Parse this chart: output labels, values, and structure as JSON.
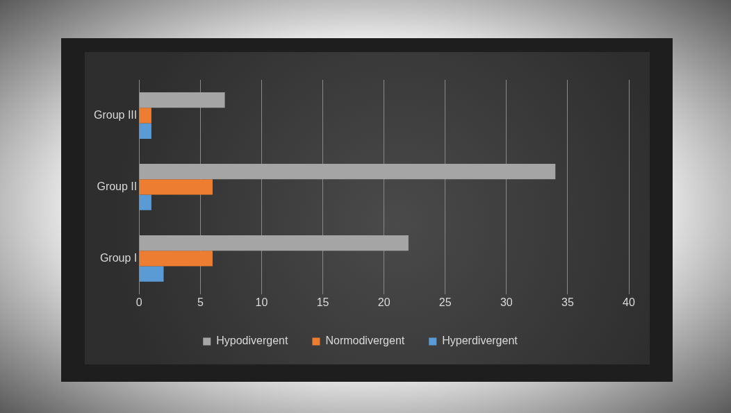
{
  "chart_data": {
    "type": "bar",
    "orientation": "horizontal",
    "categories": [
      "Group III",
      "Group II",
      "Group I"
    ],
    "series": [
      {
        "name": "Hypodivergent",
        "color": "#a5a5a5",
        "values": [
          7,
          34,
          22
        ]
      },
      {
        "name": "Normodivergent",
        "color": "#ed7d31",
        "values": [
          1,
          6,
          6
        ]
      },
      {
        "name": "Hyperdivergent",
        "color": "#5b9bd5",
        "values": [
          1,
          1,
          2
        ]
      }
    ],
    "xlim": [
      0,
      40
    ],
    "xticks": [
      0,
      5,
      10,
      15,
      20,
      25,
      30,
      35,
      40
    ],
    "grid": "x",
    "legend": "bottom"
  }
}
